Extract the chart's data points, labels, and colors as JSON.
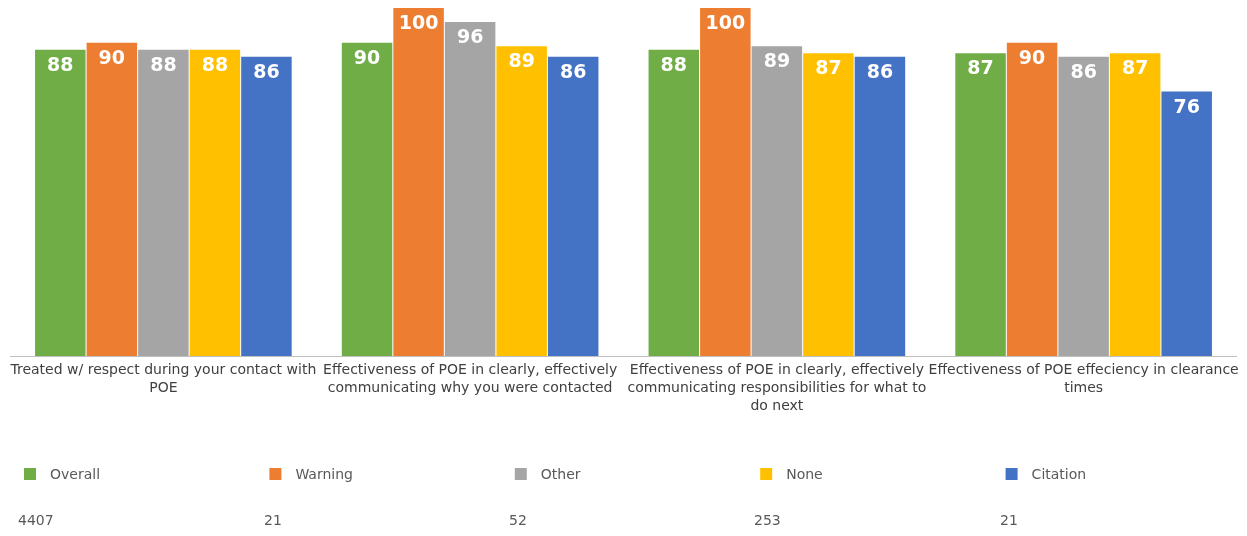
{
  "chart_data": {
    "type": "bar",
    "categories": [
      "Treated w/ respect during your contact with POE",
      "Effectiveness of POE in clearly, effectively communicating why you were contacted",
      "Effectiveness of POE in clearly, effectively communicating responsibilities for what to do next",
      "Effectiveness of POE effeciency in clearance times"
    ],
    "series": [
      {
        "name": "Overall",
        "color": "#70ad47",
        "values": [
          88,
          90,
          88,
          87
        ]
      },
      {
        "name": "Warning",
        "color": "#ed7d31",
        "values": [
          90,
          100,
          100,
          90
        ]
      },
      {
        "name": "Other",
        "color": "#a5a5a5",
        "values": [
          88,
          96,
          89,
          86
        ]
      },
      {
        "name": "None",
        "color": "#ffc000",
        "values": [
          88,
          89,
          87,
          87
        ]
      },
      {
        "name": "Citation",
        "color": "#4472c4",
        "values": [
          86,
          86,
          86,
          76
        ]
      }
    ],
    "data_labels": true,
    "legend": "bottom",
    "annotations": [
      "4407",
      "21",
      "52",
      "253",
      "21"
    ]
  }
}
